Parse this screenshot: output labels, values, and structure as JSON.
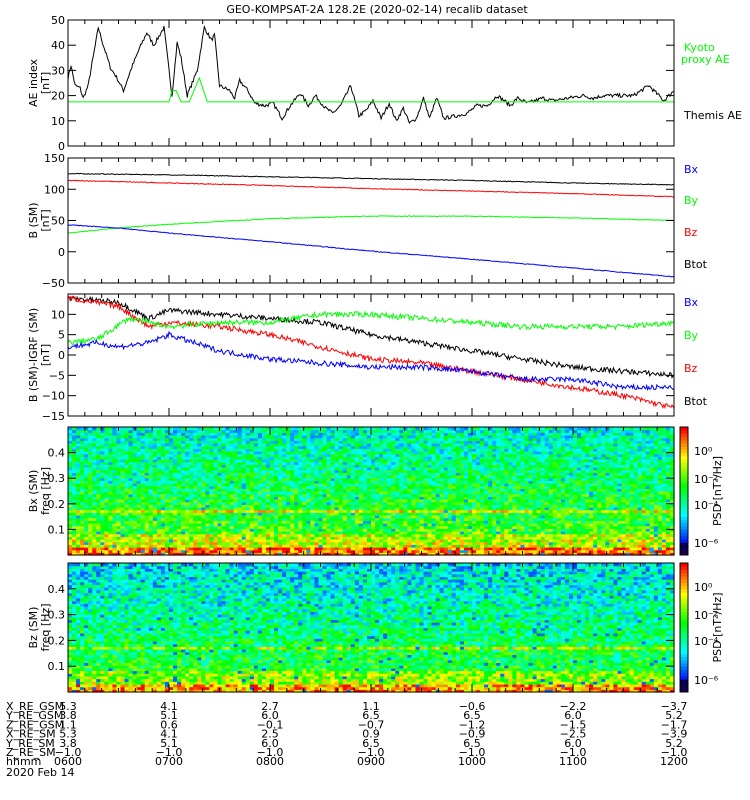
{
  "title": "GEO-KOMPSAT-2A 128.2E (2020-02-14) recalib dataset",
  "chart_data": [
    {
      "type": "line",
      "ylabel": "AE index",
      "yunit": "[nT]",
      "ylim": [
        0,
        50
      ],
      "yticks": [
        "0",
        "10",
        "20",
        "30",
        "40",
        "50"
      ],
      "xlim": [
        6,
        12
      ],
      "series": [
        {
          "name": "Themis AE",
          "color": "#000000",
          "x": [
            6.0,
            6.03,
            6.07,
            6.12,
            6.15,
            6.2,
            6.27,
            6.3,
            6.35,
            6.42,
            6.47,
            6.55,
            6.62,
            6.7,
            6.78,
            6.85,
            6.95,
            7.03,
            7.08,
            7.12,
            7.18,
            7.28,
            7.35,
            7.42,
            7.45,
            7.5,
            7.6,
            7.65,
            7.7,
            7.78,
            7.85,
            7.95,
            8.03,
            8.12,
            8.2,
            8.3,
            8.38,
            8.45,
            8.55,
            8.62,
            8.7,
            8.8,
            8.88,
            8.95,
            9.02,
            9.1,
            9.18,
            9.25,
            9.32,
            9.38,
            9.45,
            9.52,
            9.58,
            9.65,
            9.72,
            9.85,
            9.95,
            10.05,
            10.15,
            10.25,
            10.32,
            10.38,
            10.45,
            10.55,
            10.7,
            10.8,
            10.95,
            11.1,
            11.2,
            11.3,
            11.45,
            11.6,
            11.75,
            11.9,
            12.0
          ],
          "y": [
            27,
            32,
            24,
            23,
            19,
            24,
            40,
            47,
            40,
            31,
            28,
            22,
            30,
            38,
            45,
            40,
            47,
            20,
            41,
            35,
            20,
            30,
            47,
            42,
            44,
            24,
            22,
            19,
            26,
            22,
            17,
            16,
            17,
            11,
            16,
            21,
            16,
            20,
            15,
            13,
            16,
            24,
            12,
            14,
            18,
            11,
            17,
            10,
            15,
            9,
            11,
            19,
            11,
            19,
            11,
            12,
            13,
            16,
            16,
            20,
            18,
            16,
            19,
            17,
            19,
            18,
            19,
            20,
            19,
            20,
            20,
            20,
            24,
            18,
            22
          ]
        },
        {
          "name": "Kyoto proxy AE",
          "color": "#00ff00",
          "x": [
            6.0,
            7.0,
            7.03,
            7.07,
            7.12,
            7.2,
            7.3,
            7.38,
            12.0
          ],
          "y": [
            17.5,
            17.5,
            22,
            22,
            17.5,
            17.5,
            27,
            17.5,
            17.5
          ]
        }
      ],
      "legend": [
        {
          "label": "Kyoto",
          "color": "#00ff00"
        },
        {
          "label": "proxy AE",
          "color": "#00ff00"
        },
        {
          "label": "Themis AE",
          "color": "#000000"
        }
      ]
    },
    {
      "type": "line",
      "ylabel": "B (SM)",
      "yunit": "[nT]",
      "ylim": [
        -50,
        150
      ],
      "yticks": [
        "-50",
        "0",
        "50",
        "100",
        "150"
      ],
      "xlim": [
        6,
        12
      ],
      "series": [
        {
          "name": "Btot",
          "color": "#000000",
          "x": [
            6,
            7,
            8,
            9,
            10,
            11,
            12
          ],
          "y": [
            125,
            123,
            120,
            117,
            114,
            110,
            107
          ]
        },
        {
          "name": "Bz",
          "color": "#ff0000",
          "x": [
            6,
            6.3,
            7,
            8,
            9,
            10,
            11,
            12
          ],
          "y": [
            114,
            113,
            110,
            106,
            101,
            97,
            93,
            88
          ]
        },
        {
          "name": "By",
          "color": "#00ff00",
          "x": [
            6,
            6.5,
            7,
            8,
            9,
            10,
            11,
            12
          ],
          "y": [
            30,
            38,
            44,
            53,
            57,
            57,
            54,
            50
          ]
        },
        {
          "name": "Bx",
          "color": "#0000ff",
          "x": [
            6,
            6.5,
            7,
            8,
            9,
            10,
            11,
            12
          ],
          "y": [
            43,
            38,
            30,
            16,
            1,
            -12,
            -26,
            -40
          ]
        }
      ],
      "legend": [
        {
          "label": "Bx",
          "color": "#0000ff"
        },
        {
          "label": "By",
          "color": "#00ff00"
        },
        {
          "label": "Bz",
          "color": "#ff0000"
        },
        {
          "label": "Btot",
          "color": "#000000"
        }
      ]
    },
    {
      "type": "line",
      "ylabel": "B (SM)-IGRF (SM)",
      "yunit": "[nT]",
      "ylim": [
        -15,
        15
      ],
      "yticks": [
        "-15",
        "-10",
        "-5",
        "0",
        "5",
        "10"
      ],
      "xlim": [
        6,
        12
      ],
      "series": [
        {
          "name": "Btot",
          "color": "#000000",
          "x": [
            6,
            6.5,
            6.8,
            7,
            7.5,
            8,
            8.5,
            9,
            9.5,
            10,
            10.5,
            11,
            11.5,
            12
          ],
          "y": [
            14,
            13,
            9,
            11,
            10,
            9,
            8,
            5,
            3,
            1,
            -1,
            -3,
            -4,
            -5
          ]
        },
        {
          "name": "Bz",
          "color": "#ff0000",
          "x": [
            6,
            6.5,
            6.8,
            7,
            7.5,
            8,
            8.5,
            9,
            9.5,
            10,
            10.5,
            11,
            11.5,
            12
          ],
          "y": [
            14,
            12,
            7,
            8,
            7,
            5,
            2,
            -1,
            -2,
            -4,
            -6,
            -8,
            -10,
            -13
          ]
        },
        {
          "name": "By",
          "color": "#00ff00",
          "x": [
            6,
            6.3,
            6.6,
            7,
            7.5,
            8,
            8.5,
            9,
            9.5,
            10,
            10.5,
            11,
            11.5,
            12
          ],
          "y": [
            3,
            4,
            9,
            7,
            8,
            8,
            10,
            10,
            9,
            8,
            7,
            7,
            7,
            8
          ]
        },
        {
          "name": "Bx",
          "color": "#0000ff",
          "x": [
            6,
            6.3,
            6.5,
            6.8,
            7,
            7.5,
            8,
            8.5,
            9,
            9.5,
            10,
            10.5,
            11,
            11.5,
            12
          ],
          "y": [
            2,
            3,
            2,
            3,
            5,
            1,
            -1,
            -2,
            -3,
            -3,
            -4,
            -6,
            -6,
            -8,
            -8
          ]
        }
      ],
      "legend": [
        {
          "label": "Bx",
          "color": "#0000ff"
        },
        {
          "label": "By",
          "color": "#00ff00"
        },
        {
          "label": "Bz",
          "color": "#ff0000"
        },
        {
          "label": "Btot",
          "color": "#000000"
        }
      ]
    },
    {
      "type": "heatmap",
      "ylabel": "Bx (SM)",
      "yunit": "freq [Hz]",
      "ylim": [
        0,
        0.5
      ],
      "yticks": [
        "0.1",
        "0.2",
        "0.3",
        "0.4"
      ],
      "xlim": [
        6,
        12
      ],
      "colorbar": {
        "label": "PSD [nT²/Hz]",
        "ticks": [
          "10⁰",
          "10⁻²",
          "10⁻⁴",
          "10⁻⁶"
        ]
      }
    },
    {
      "type": "heatmap",
      "ylabel": "Bz (SM)",
      "yunit": "freq [Hz]",
      "ylim": [
        0,
        0.5
      ],
      "yticks": [
        "0.1",
        "0.2",
        "0.3",
        "0.4"
      ],
      "xlim": [
        6,
        12
      ],
      "colorbar": {
        "label": "PSD [nT²/Hz]",
        "ticks": [
          "10⁰",
          "10⁻²",
          "10⁻⁴",
          "10⁻⁶"
        ]
      }
    }
  ],
  "ephemeris": {
    "rows": [
      {
        "label": "X_RE_GSM",
        "values": [
          "5.3",
          "4.1",
          "2.7",
          "1.1",
          "−0.6",
          "−2.2",
          "−3.7"
        ]
      },
      {
        "label": "Y_RE_GSM",
        "values": [
          "3.8",
          "5.1",
          "6.0",
          "6.5",
          "6.5",
          "6.0",
          "5.2"
        ]
      },
      {
        "label": "Z_RE_GSM",
        "values": [
          "1.1",
          "0.6",
          "−0.1",
          "−0.7",
          "−1.2",
          "−1.5",
          "−1.7"
        ]
      },
      {
        "label": "X_RE_SM",
        "values": [
          "5.3",
          "4.1",
          "2.5",
          "0.9",
          "−0.9",
          "−2.5",
          "−3.9"
        ]
      },
      {
        "label": "Y_RE_SM",
        "values": [
          "3.8",
          "5.1",
          "6.0",
          "6.5",
          "6.5",
          "6.0",
          "5.2"
        ]
      },
      {
        "label": "Z_RE_SM",
        "values": [
          "−1.0",
          "−1.0",
          "−1.0",
          "−1.0",
          "−1.0",
          "−1.0",
          "−1.0"
        ]
      },
      {
        "label": "hhmm",
        "values": [
          "0600",
          "0700",
          "0800",
          "0900",
          "1000",
          "1100",
          "1200"
        ]
      }
    ],
    "date": "2020 Feb 14"
  }
}
